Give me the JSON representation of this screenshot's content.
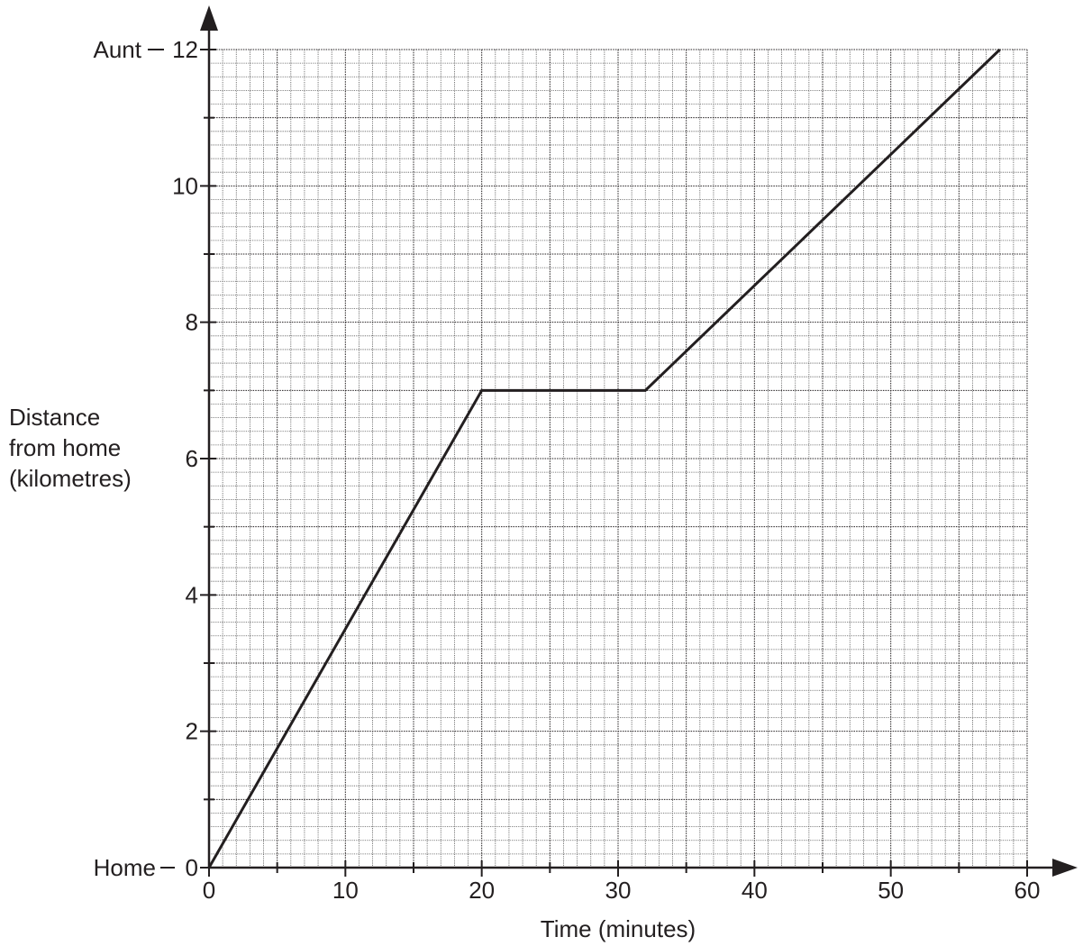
{
  "chart_data": {
    "type": "line",
    "xlabel": "Time (minutes)",
    "ylabel_lines": [
      "Distance",
      "from home",
      "(kilometres)"
    ],
    "xlim": [
      0,
      60
    ],
    "ylim": [
      0,
      12
    ],
    "x_ticks": [
      0,
      10,
      20,
      30,
      40,
      50,
      60
    ],
    "y_ticks": [
      0,
      2,
      4,
      6,
      8,
      10,
      12
    ],
    "x_tick_labels": [
      "0",
      "10",
      "20",
      "30",
      "40",
      "50",
      "60"
    ],
    "y_tick_labels": [
      "0",
      "2",
      "4",
      "6",
      "8",
      "10",
      "12"
    ],
    "y_annotations": {
      "bottom": "Home",
      "top": "Aunt"
    },
    "grid": true,
    "series": [
      {
        "x": [
          0,
          20,
          32,
          58
        ],
        "y": [
          0,
          7,
          7,
          12
        ]
      }
    ],
    "colors": {
      "line": "#231f20",
      "axis": "#231f20"
    }
  }
}
